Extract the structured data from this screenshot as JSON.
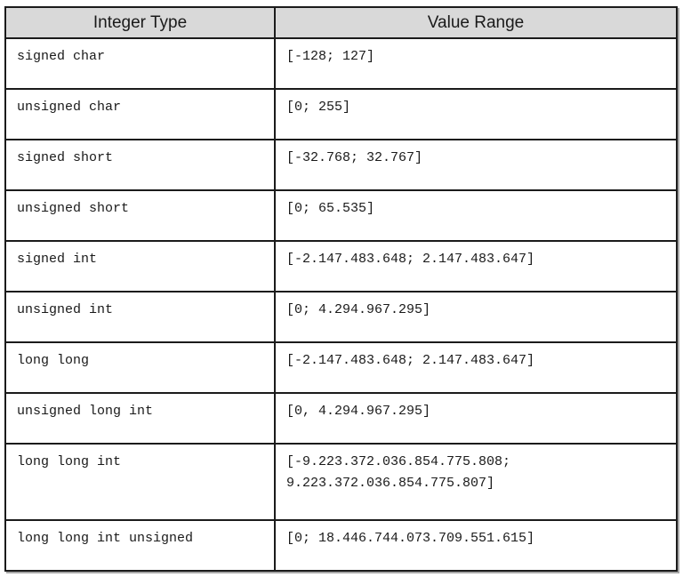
{
  "table": {
    "columns": [
      "Integer Type",
      "Value Range"
    ],
    "rows": [
      {
        "type": "signed char",
        "range": "[-128; 127]"
      },
      {
        "type": "unsigned char",
        "range": "[0; 255]"
      },
      {
        "type": "signed short",
        "range": "[-32.768; 32.767]"
      },
      {
        "type": "unsigned short",
        "range": "[0; 65.535]"
      },
      {
        "type": "signed int",
        "range": "[-2.147.483.648; 2.147.483.647]"
      },
      {
        "type": "unsigned int",
        "range": "[0; 4.294.967.295]"
      },
      {
        "type": "long long",
        "range": "[-2.147.483.648; 2.147.483.647]"
      },
      {
        "type": "unsigned long int",
        "range": "[0, 4.294.967.295]"
      },
      {
        "type": "long long int",
        "range": "[-9.223.372.036.854.775.808; 9.223.372.036.854.775.807]"
      },
      {
        "type": "long long int unsigned",
        "range": "[0; 18.446.744.073.709.551.615]"
      }
    ],
    "colors": {
      "header_bg": "#d9d9d9",
      "border": "#1b1b1b",
      "text": "#1a1a1a"
    }
  }
}
